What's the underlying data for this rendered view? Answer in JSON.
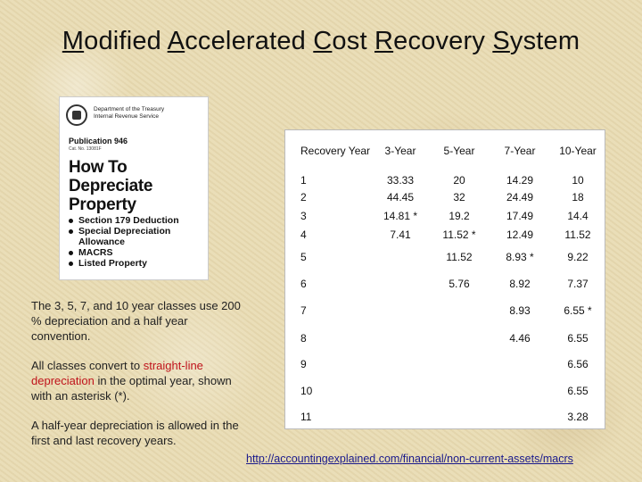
{
  "title": {
    "parts": [
      {
        "initial": "M",
        "rest": "odified "
      },
      {
        "initial": "A",
        "rest": "ccelerated "
      },
      {
        "initial": "C",
        "rest": "ost "
      },
      {
        "initial": "R",
        "rest": "ecovery "
      },
      {
        "initial": "S",
        "rest": "ystem"
      }
    ]
  },
  "cover": {
    "dept_line1": "Department of the Treasury",
    "dept_line2": "Internal Revenue Service",
    "publication": "Publication 946",
    "cat_no": "Cat. No. 13081F",
    "heading_lines": [
      "How To",
      "Depreciate",
      "Property"
    ],
    "bullets": [
      {
        "text": "Section 179 Deduction",
        "bullet": true
      },
      {
        "text": "Special Depreciation",
        "bullet": true
      },
      {
        "text": "Allowance",
        "bullet": false
      },
      {
        "text": "MACRS",
        "bullet": true
      },
      {
        "text": "Listed Property",
        "bullet": true
      }
    ]
  },
  "notes": {
    "p1": "The 3, 5, 7, and 10 year classes use 200 % depreciation and a half year convention.",
    "p2_before": "All classes convert to ",
    "p2_red": "straight-line depreciation",
    "p2_after": " in the optimal year, shown with an asterisk (*).",
    "p3": "A half-year depreciation is allowed in the first and last recovery years."
  },
  "table": {
    "headers": [
      "Recovery Year",
      "3-Year",
      "5-Year",
      "7-Year",
      "10-Year"
    ],
    "rows": [
      {
        "year": "1",
        "c3": "33.33",
        "c5": "20",
        "c7": "14.29",
        "c10": "10"
      },
      {
        "year": "2",
        "c3": "44.45",
        "c5": "32",
        "c7": "24.49",
        "c10": "18"
      },
      {
        "year": "3",
        "c3": "14.81 *",
        "c5": "19.2",
        "c7": "17.49",
        "c10": "14.4"
      },
      {
        "year": "4",
        "c3": "7.41",
        "c5": "11.52 *",
        "c7": "12.49",
        "c10": "11.52"
      },
      {
        "year": "5",
        "c3": "",
        "c5": "11.52",
        "c7": "8.93 *",
        "c10": "9.22"
      },
      {
        "year": "6",
        "c3": "",
        "c5": "5.76",
        "c7": "8.92",
        "c10": "7.37"
      },
      {
        "year": "7",
        "c3": "",
        "c5": "",
        "c7": "8.93",
        "c10": "6.55 *"
      },
      {
        "year": "8",
        "c3": "",
        "c5": "",
        "c7": "4.46",
        "c10": "6.55"
      },
      {
        "year": "9",
        "c3": "",
        "c5": "",
        "c7": "",
        "c10": "6.56"
      },
      {
        "year": "10",
        "c3": "",
        "c5": "",
        "c7": "",
        "c10": "6.55"
      },
      {
        "year": "11",
        "c3": "",
        "c5": "",
        "c7": "",
        "c10": "3.28"
      }
    ]
  },
  "source_link": "http://accountingexplained.com/financial/non-current-assets/macrs"
}
